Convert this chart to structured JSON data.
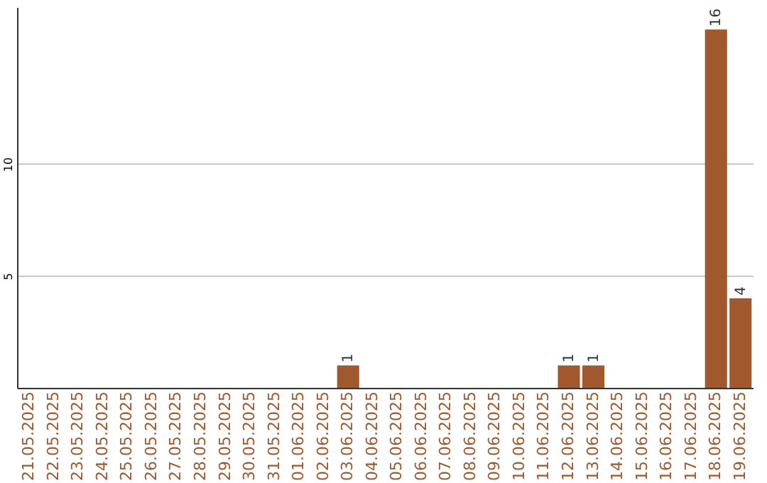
{
  "chart_data": {
    "type": "bar",
    "categories": [
      "21.05.2025",
      "22.05.2025",
      "23.05.2025",
      "24.05.2025",
      "25.05.2025",
      "26.05.2025",
      "27.05.2025",
      "28.05.2025",
      "29.05.2025",
      "30.05.2025",
      "31.05.2025",
      "01.06.2025",
      "02.06.2025",
      "03.06.2025",
      "04.06.2025",
      "05.06.2025",
      "06.06.2025",
      "07.06.2025",
      "08.06.2025",
      "09.06.2025",
      "10.06.2025",
      "11.06.2025",
      "12.06.2025",
      "13.06.2025",
      "14.06.2025",
      "15.06.2025",
      "16.06.2025",
      "17.06.2025",
      "18.06.2025",
      "19.06.2025"
    ],
    "series": [
      {
        "color": "#a0582c",
        "values": [
          0,
          0,
          0,
          0,
          0,
          0,
          0,
          0,
          0,
          0,
          0,
          0,
          0,
          1,
          0,
          0,
          0,
          0,
          0,
          0,
          0,
          0,
          1,
          1,
          0,
          0,
          0,
          0,
          16,
          4
        ],
        "value_labels": [
          null,
          null,
          null,
          null,
          null,
          null,
          null,
          null,
          null,
          null,
          null,
          null,
          null,
          "1",
          null,
          null,
          null,
          null,
          null,
          null,
          null,
          null,
          "1",
          "1",
          null,
          null,
          null,
          null,
          "16",
          "4"
        ]
      }
    ],
    "ylim": [
      0,
      17
    ],
    "yticks": [
      5,
      10
    ],
    "grid": "y"
  }
}
